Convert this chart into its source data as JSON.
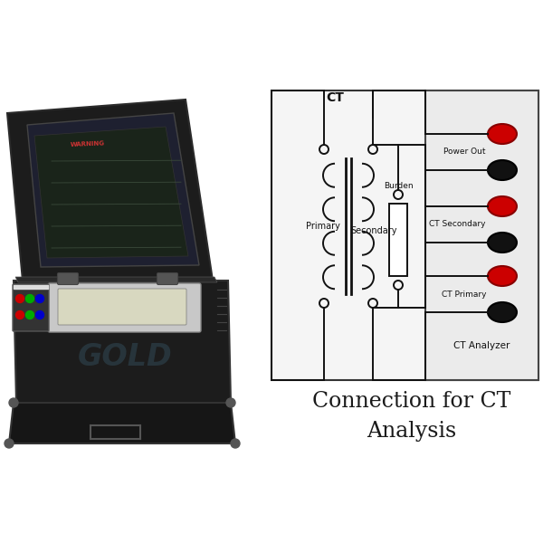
{
  "background_color": "#ffffff",
  "title_line1": "Connection for CT",
  "title_line2": "Analysis",
  "title_fontsize": 17,
  "title_color": "#1a1a1a",
  "diagram": {
    "ct_label": "CT",
    "primary_label": "Primary",
    "secondary_label": "Secondary",
    "burden_label": "Burden",
    "ct_analyzer_label": "CT Analyzer",
    "power_out_label": "Power Out",
    "ct_secondary_label": "CT Secondary",
    "ct_primary_label": "CT Primary",
    "connector_red": "#cc0000",
    "connector_black": "#111111",
    "wire_color": "#111111",
    "lw": 1.4
  },
  "device": {
    "bottom_case_color": "#1a1a1a",
    "lid_color": "#1e1e1e",
    "screen_color": "#222233",
    "warn_bg_color": "#1a2a1a",
    "warn_text_color": "#cc3333",
    "panel_color": "#cccccc",
    "btn_colors": [
      "#cc0000",
      "#00aa00",
      "#0000cc"
    ],
    "watermark_color": "#5599bb"
  }
}
